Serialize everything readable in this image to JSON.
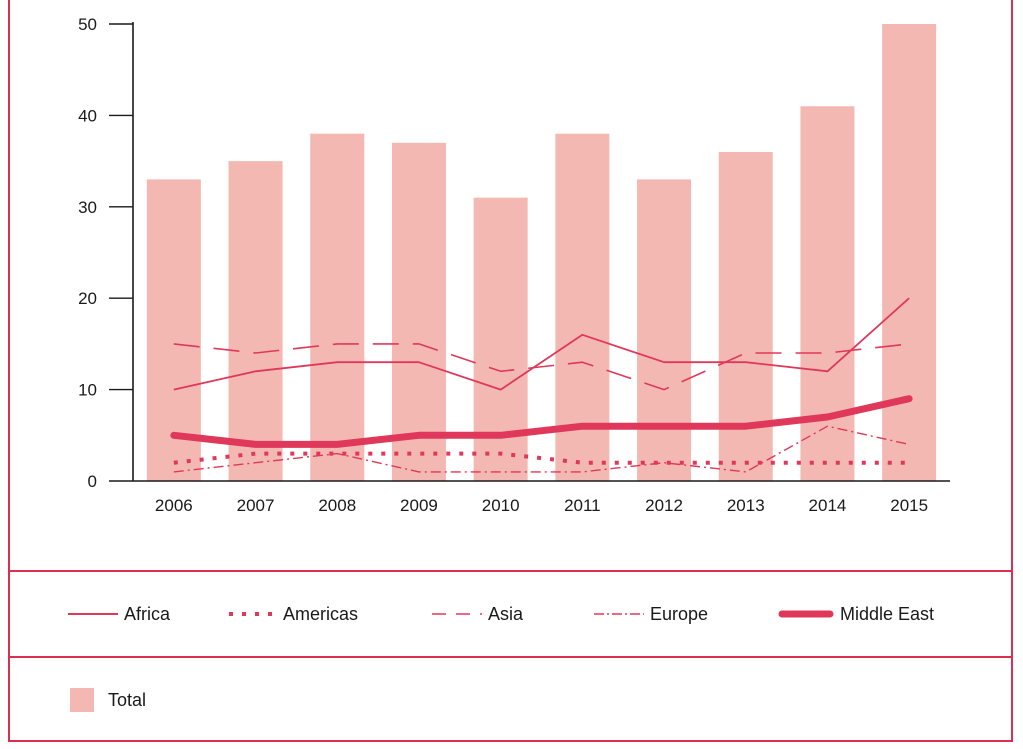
{
  "chart_data": {
    "type": "bar+line",
    "categories": [
      "2006",
      "2007",
      "2008",
      "2009",
      "2010",
      "2011",
      "2012",
      "2013",
      "2014",
      "2015"
    ],
    "ylim": [
      0,
      50
    ],
    "yticks": [
      "0",
      "10",
      "20",
      "30",
      "40",
      "50"
    ],
    "bars": {
      "name": "Total",
      "color": "#f4b8b2",
      "values": [
        33,
        35,
        38,
        37,
        31,
        38,
        33,
        36,
        41,
        50
      ]
    },
    "series": [
      {
        "name": "Africa",
        "style": "solid",
        "color": "#e0385a",
        "values": [
          10,
          12,
          13,
          13,
          10,
          16,
          13,
          13,
          12,
          20
        ]
      },
      {
        "name": "Americas",
        "style": "dotted",
        "color": "#e0385a",
        "values": [
          2,
          3,
          3,
          3,
          3,
          2,
          2,
          2,
          2,
          2
        ]
      },
      {
        "name": "Asia",
        "style": "dashed",
        "color": "#e0385a",
        "values": [
          15,
          14,
          15,
          15,
          12,
          13,
          10,
          14,
          14,
          15
        ]
      },
      {
        "name": "Europe",
        "style": "dashdot",
        "color": "#e0385a",
        "values": [
          1,
          2,
          3,
          1,
          1,
          1,
          2,
          1,
          6,
          4
        ]
      },
      {
        "name": "Middle East",
        "style": "thick",
        "color": "#e0385a",
        "values": [
          5,
          4,
          4,
          5,
          5,
          6,
          6,
          6,
          7,
          9
        ]
      }
    ],
    "legend": {
      "lines": [
        "Africa",
        "Americas",
        "Asia",
        "Europe",
        "Middle East"
      ],
      "bars": [
        "Total"
      ]
    }
  }
}
